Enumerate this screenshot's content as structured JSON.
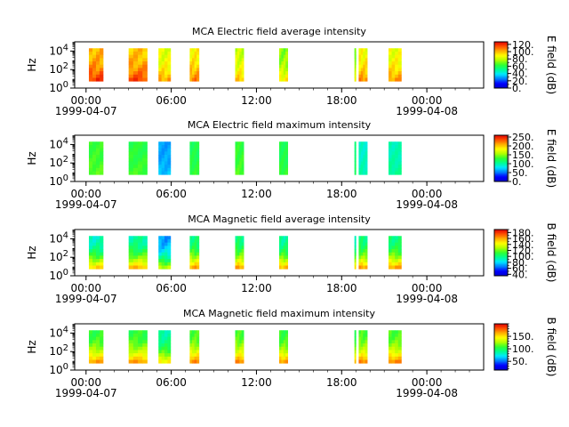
{
  "figure": {
    "colormap_stops": [
      "#0000d0",
      "#0000ff",
      "#0080ff",
      "#00e8ff",
      "#00ff90",
      "#30ff30",
      "#b0ff00",
      "#ffff00",
      "#ffb000",
      "#ff5000",
      "#e00000"
    ]
  },
  "chart_data": [
    {
      "type": "heatmap",
      "title": "MCA  Electric field average intensity",
      "ylabel": "Hz",
      "x_ticks": [
        "00:00",
        "06:00",
        "12:00",
        "18:00",
        "00:00"
      ],
      "x_date_start": "1999-04-07",
      "x_date_end": "1999-04-08",
      "x_range_hours": [
        -0.8,
        28
      ],
      "y_scale": "log",
      "y_ticks": [
        "10^0",
        "10^2",
        "10^4"
      ],
      "y_range": [
        1,
        100000
      ],
      "y_data_range": [
        5.6,
        20000
      ],
      "colorbar_label": "E field (dB)",
      "colorbar_ticks": [
        "0.",
        "20.",
        "40.",
        "60.",
        "80.",
        "100.",
        "120."
      ],
      "colorbar_range": [
        0,
        127
      ],
      "segments_hours": [
        [
          0.2,
          1.2
        ],
        [
          3.0,
          4.3
        ],
        [
          5.1,
          5.95
        ],
        [
          7.3,
          7.95
        ],
        [
          10.5,
          11.1
        ],
        [
          13.6,
          14.2
        ],
        [
          18.9,
          19.0
        ],
        [
          19.2,
          19.8
        ],
        [
          21.3,
          22.2
        ]
      ],
      "base_db": [
        100,
        98,
        84,
        90,
        80,
        72,
        70,
        88,
        86
      ],
      "low_freq_boost": 18
    },
    {
      "type": "heatmap",
      "title": "MCA  Electric field maximum intensity",
      "ylabel": "Hz",
      "x_ticks": [
        "00:00",
        "06:00",
        "12:00",
        "18:00",
        "00:00"
      ],
      "x_date_start": "1999-04-07",
      "x_date_end": "1999-04-08",
      "x_range_hours": [
        -0.8,
        28
      ],
      "y_scale": "log",
      "y_ticks": [
        "10^0",
        "10^2",
        "10^4"
      ],
      "y_range": [
        1,
        100000
      ],
      "y_data_range": [
        5.6,
        20000
      ],
      "colorbar_label": "E field (dB)",
      "colorbar_ticks": [
        "0.",
        "50.",
        "100.",
        "150.",
        "200.",
        "250."
      ],
      "colorbar_range": [
        0,
        260
      ],
      "segments_hours": [
        [
          0.2,
          1.2
        ],
        [
          3.0,
          4.3
        ],
        [
          5.1,
          5.95
        ],
        [
          7.3,
          7.95
        ],
        [
          10.5,
          11.1
        ],
        [
          13.6,
          14.2
        ],
        [
          18.9,
          19.0
        ],
        [
          19.2,
          19.8
        ],
        [
          21.3,
          22.2
        ]
      ],
      "base_db": [
        130,
        125,
        60,
        120,
        128,
        120,
        110,
        90,
        95
      ],
      "low_freq_boost": 8
    },
    {
      "type": "heatmap",
      "title": "MCA  Magnetic field average intensity",
      "ylabel": "Hz",
      "x_ticks": [
        "00:00",
        "06:00",
        "12:00",
        "18:00",
        "00:00"
      ],
      "x_date_start": "1999-04-07",
      "x_date_end": "1999-04-08",
      "x_range_hours": [
        -0.8,
        28
      ],
      "y_scale": "log",
      "y_ticks": [
        "10^0",
        "10^2",
        "10^4"
      ],
      "y_range": [
        1,
        100000
      ],
      "y_data_range": [
        5.6,
        20000
      ],
      "colorbar_label": "B field (dB)",
      "colorbar_ticks": [
        "40.",
        "60.",
        "80.",
        "100.",
        "120.",
        "140.",
        "160.",
        "180."
      ],
      "colorbar_range": [
        35,
        190
      ],
      "segments_hours": [
        [
          0.2,
          1.2
        ],
        [
          3.0,
          4.3
        ],
        [
          5.1,
          5.95
        ],
        [
          7.3,
          7.95
        ],
        [
          10.5,
          11.1
        ],
        [
          13.6,
          14.2
        ],
        [
          18.9,
          19.0
        ],
        [
          19.2,
          19.8
        ],
        [
          21.3,
          22.2
        ]
      ],
      "base_db": [
        90,
        95,
        70,
        100,
        100,
        95,
        90,
        100,
        100
      ],
      "low_freq_boost": 60
    },
    {
      "type": "heatmap",
      "title": "MCA  Magnetic field maximum intensity",
      "ylabel": "Hz",
      "x_ticks": [
        "00:00",
        "06:00",
        "12:00",
        "18:00",
        "00:00"
      ],
      "x_date_start": "1999-04-07",
      "x_date_end": "1999-04-08",
      "x_range_hours": [
        -0.8,
        28
      ],
      "y_scale": "log",
      "y_ticks": [
        "10^0",
        "10^2",
        "10^4"
      ],
      "y_range": [
        1,
        100000
      ],
      "y_data_range": [
        5.6,
        20000
      ],
      "colorbar_label": "B field (dB)",
      "colorbar_ticks": [
        "50.",
        "100.",
        "150."
      ],
      "colorbar_range": [
        15,
        200
      ],
      "segments_hours": [
        [
          0.2,
          1.2
        ],
        [
          3.0,
          4.3
        ],
        [
          5.1,
          5.95
        ],
        [
          7.3,
          7.95
        ],
        [
          10.5,
          11.1
        ],
        [
          13.6,
          14.2
        ],
        [
          18.9,
          19.0
        ],
        [
          19.2,
          19.8
        ],
        [
          21.3,
          22.2
        ]
      ],
      "base_db": [
        105,
        105,
        85,
        110,
        110,
        105,
        100,
        110,
        110
      ],
      "low_freq_boost": 60
    }
  ]
}
